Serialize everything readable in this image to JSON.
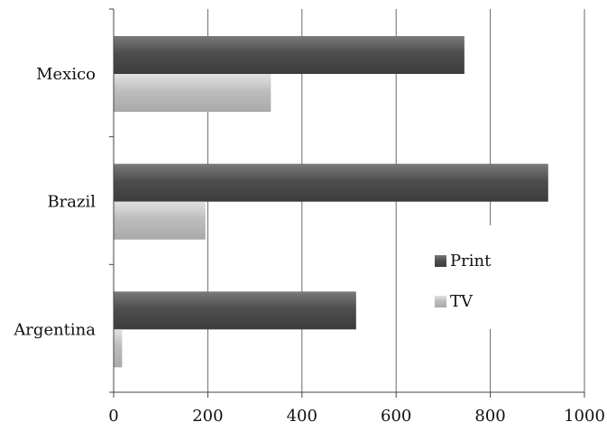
{
  "chart_data": {
    "type": "bar",
    "orientation": "horizontal",
    "categories": [
      "Mexico",
      "Brazil",
      "Argentina"
    ],
    "series": [
      {
        "name": "Print",
        "values": [
          745,
          923,
          515
        ],
        "color": "#555555"
      },
      {
        "name": "TV",
        "values": [
          334,
          195,
          18
        ],
        "color": "#bbbbbb"
      }
    ],
    "xlim": [
      0,
      1000
    ],
    "xticks": [
      "0",
      "200",
      "400",
      "600",
      "800",
      "1000"
    ],
    "grid": true,
    "legend_position": "right-bottom"
  }
}
